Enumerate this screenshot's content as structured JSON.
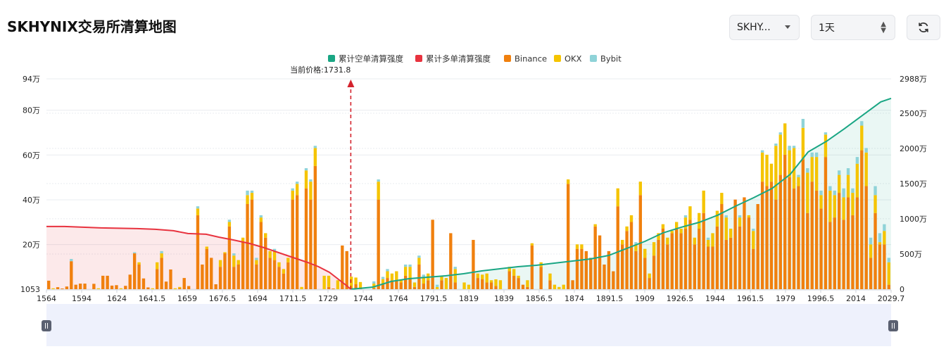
{
  "title": "SKHYNIX交易所清算地图",
  "controls": {
    "symbol_select": "SKHY...",
    "interval_select": "1天"
  },
  "colors": {
    "short_cum": "#1aa684",
    "long_cum": "#e8333f",
    "binance": "#f0800e",
    "okx": "#f5c400",
    "bybit": "#8fd3d8",
    "grid": "#e9ecf0",
    "slider_bg": "#eef1fc"
  },
  "chart_data": {
    "type": "bar",
    "legend": [
      "累计空单清算强度",
      "累计多单清算强度",
      "Binance",
      "OKX",
      "Bybit"
    ],
    "legend_position": "top-center",
    "current_price_label": "当前价格:1731.8",
    "current_price": 1731.8,
    "x_tick_labels": [
      "1564",
      "1594",
      "1624",
      "1641.5",
      "1659",
      "1676.5",
      "1694",
      "1711.5",
      "1729",
      "1744",
      "1764",
      "1791.5",
      "1819",
      "1839",
      "1856.5",
      "1874",
      "1891.5",
      "1909",
      "1926.5",
      "1944",
      "1961.5",
      "1979",
      "1996.5",
      "2014",
      "2029.7"
    ],
    "left_axis_ticks": [
      "1053",
      "20万",
      "40万",
      "60万",
      "80万",
      "94万"
    ],
    "left_axis_values": [
      1053,
      200000,
      400000,
      600000,
      800000,
      940000
    ],
    "ylim_left": [
      1053,
      940000
    ],
    "right_axis_ticks": [
      "0",
      "500万",
      "1000万",
      "1500万",
      "2000万",
      "2500万",
      "2988万"
    ],
    "right_axis_values": [
      0,
      5000000,
      10000000,
      15000000,
      20000000,
      25000000,
      29880000
    ],
    "ylim_right": [
      0,
      29880000
    ],
    "x_range": [
      1564,
      2029.7
    ],
    "grid": true,
    "bars": {
      "binance": [
        38000,
        0,
        9000,
        3000,
        12000,
        125000,
        20000,
        25000,
        25000,
        0,
        24000,
        0,
        60000,
        60000,
        16000,
        18000,
        0,
        15000,
        65000,
        160000,
        110000,
        48000,
        8000,
        0,
        90000,
        140000,
        34000,
        88000,
        0,
        5000,
        50000,
        14000,
        0,
        330000,
        110000,
        180000,
        140000,
        22000,
        100000,
        160000,
        280000,
        100000,
        110000,
        210000,
        380000,
        400000,
        110000,
        300000,
        230000,
        140000,
        130000,
        100000,
        70000,
        120000,
        400000,
        420000,
        0,
        450000,
        400000,
        550000,
        0,
        0,
        10000,
        3000,
        0,
        195000,
        170000,
        6000,
        22000,
        2000,
        0,
        0,
        5000,
        400000,
        25000,
        50000,
        40000,
        40000,
        30000,
        60000,
        50000,
        10000,
        110000,
        25000,
        40000,
        310000,
        0,
        40000,
        0,
        250000,
        30000,
        0,
        0,
        0,
        220000,
        50000,
        45000,
        30000,
        30000,
        14000,
        0,
        0,
        80000,
        60000,
        50000,
        20000,
        10000,
        195000,
        0,
        100000,
        0,
        40000,
        0,
        0,
        0,
        470000,
        40000,
        180000,
        180000,
        170000,
        140000,
        280000,
        240000,
        110000,
        170000,
        80000,
        370000,
        200000,
        260000,
        300000,
        170000,
        420000,
        140000,
        50000,
        150000,
        220000,
        270000,
        200000,
        250000,
        270000,
        250000,
        270000,
        310000,
        200000,
        270000,
        340000,
        190000,
        190000,
        280000,
        380000,
        220000,
        230000,
        400000,
        280000,
        410000,
        320000,
        180000,
        380000,
        480000,
        460000,
        480000,
        400000,
        510000,
        600000,
        500000,
        450000,
        460000,
        580000,
        340000,
        480000,
        440000,
        360000,
        590000,
        300000,
        320000,
        430000,
        310000,
        410000,
        330000,
        410000,
        620000,
        460000,
        140000,
        340000,
        200000,
        200000,
        20000
      ],
      "okx": [
        0,
        4000,
        0,
        0,
        0,
        0,
        0,
        0,
        0,
        0,
        0,
        4000,
        0,
        0,
        0,
        0,
        4000,
        0,
        0,
        0,
        10000,
        0,
        0,
        4000,
        30000,
        20000,
        0,
        0,
        4000,
        5000,
        0,
        0,
        0,
        30000,
        0,
        10000,
        0,
        0,
        30000,
        5000,
        20000,
        50000,
        20000,
        20000,
        40000,
        30000,
        20000,
        20000,
        20000,
        30000,
        40000,
        20000,
        20000,
        20000,
        40000,
        50000,
        10000,
        80000,
        80000,
        80000,
        0,
        60000,
        50000,
        0,
        40000,
        0,
        0,
        50000,
        30000,
        30000,
        0,
        0,
        20000,
        80000,
        20000,
        30000,
        30000,
        40000,
        10000,
        40000,
        50000,
        20000,
        30000,
        30000,
        30000,
        0,
        10000,
        20000,
        50000,
        0,
        60000,
        0,
        30000,
        20000,
        0,
        20000,
        20000,
        40000,
        10000,
        30000,
        40000,
        0,
        20000,
        30000,
        10000,
        0,
        30000,
        10000,
        0,
        20000,
        0,
        30000,
        20000,
        10000,
        20000,
        20000,
        0,
        20000,
        20000,
        0,
        0,
        10000,
        0,
        0,
        0,
        0,
        80000,
        20000,
        20000,
        30000,
        30000,
        60000,
        40000,
        20000,
        60000,
        30000,
        20000,
        30000,
        10000,
        30000,
        20000,
        50000,
        60000,
        30000,
        70000,
        100000,
        30000,
        60000,
        70000,
        50000,
        100000,
        40000,
        0,
        40000,
        0,
        10000,
        80000,
        0,
        130000,
        140000,
        80000,
        240000,
        180000,
        140000,
        120000,
        180000,
        40000,
        140000,
        180000,
        110000,
        150000,
        60000,
        100000,
        140000,
        100000,
        80000,
        100000,
        100000,
        100000,
        150000,
        110000,
        150000,
        60000,
        80000,
        10000,
        60000,
        100000,
        0
      ],
      "bybit": [
        0,
        0,
        0,
        0,
        0,
        10000,
        0,
        0,
        0,
        0,
        0,
        0,
        0,
        0,
        0,
        0,
        0,
        0,
        0,
        5000,
        0,
        0,
        0,
        0,
        0,
        10000,
        0,
        0,
        0,
        0,
        0,
        0,
        0,
        10000,
        0,
        0,
        0,
        0,
        0,
        0,
        10000,
        10000,
        0,
        0,
        20000,
        10000,
        10000,
        10000,
        0,
        0,
        10000,
        0,
        0,
        0,
        10000,
        10000,
        0,
        10000,
        10000,
        10000,
        0,
        0,
        0,
        0,
        0,
        0,
        0,
        0,
        0,
        0,
        0,
        0,
        10000,
        10000,
        10000,
        10000,
        0,
        0,
        0,
        10000,
        10000,
        0,
        10000,
        10000,
        0,
        0,
        10000,
        0,
        0,
        0,
        10000,
        0,
        0,
        0,
        0,
        0,
        0,
        0,
        0,
        0,
        0,
        0,
        0,
        0,
        0,
        0,
        0,
        0,
        0,
        0,
        0,
        0,
        0,
        0,
        0,
        0,
        0,
        0,
        0,
        0,
        0,
        0,
        0,
        0,
        0,
        0,
        0,
        0,
        0,
        0,
        10000,
        0,
        0,
        0,
        0,
        0,
        0,
        0,
        0,
        0,
        0,
        10000,
        0,
        0,
        0,
        0,
        10000,
        0,
        0,
        0,
        10000,
        0,
        0,
        10000,
        0,
        0,
        10000,
        0,
        10000,
        0,
        0,
        10000,
        10000,
        0,
        20000,
        10000,
        10000,
        40000,
        20000,
        20000,
        20000,
        20000,
        10000,
        20000,
        20000,
        20000,
        40000,
        30000,
        20000,
        30000,
        20000,
        20000,
        30000,
        40000,
        40000,
        30000,
        20000,
        30000,
        30000,
        30000,
        20000,
        0,
        0,
        0,
        10000,
        10000,
        0
      ]
    },
    "cumulative_long": {
      "x": [
        1564,
        1574,
        1584,
        1594,
        1604,
        1614,
        1624,
        1634,
        1642,
        1652,
        1659,
        1667,
        1676,
        1684,
        1692,
        1700,
        1708,
        1714,
        1720,
        1725,
        1729,
        1731.8
      ],
      "y": [
        8900000,
        8900000,
        8800000,
        8700000,
        8650000,
        8600000,
        8500000,
        8300000,
        7900000,
        7800000,
        7400000,
        7000000,
        6500000,
        5900000,
        5200000,
        4500000,
        3800000,
        3200000,
        2400000,
        1400000,
        600000,
        0
      ]
    },
    "cumulative_short": {
      "x": [
        1731.8,
        1744,
        1754,
        1764,
        1774,
        1784,
        1794,
        1804,
        1814,
        1824,
        1834,
        1844,
        1854,
        1864,
        1874,
        1884,
        1894,
        1904,
        1914,
        1924,
        1934,
        1944,
        1954,
        1964,
        1974,
        1984,
        1994,
        2004,
        2014,
        2024,
        2029.7
      ],
      "y": [
        0,
        300000,
        1100000,
        1500000,
        1700000,
        1900000,
        2200000,
        2600000,
        2900000,
        3200000,
        3400000,
        3700000,
        4000000,
        4300000,
        4800000,
        5800000,
        6800000,
        8000000,
        8800000,
        9500000,
        10500000,
        11800000,
        13000000,
        14300000,
        16300000,
        19500000,
        21000000,
        22800000,
        24700000,
        26600000,
        27100000
      ]
    }
  }
}
